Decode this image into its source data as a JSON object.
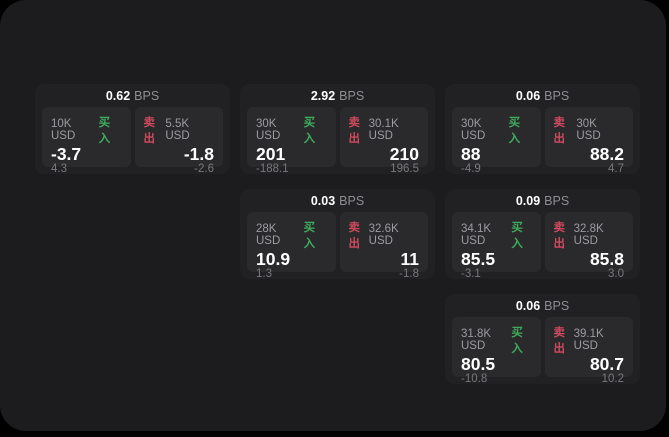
{
  "labels": {
    "bps_unit": "BPS",
    "buy": "买入",
    "sell": "卖出"
  },
  "colors": {
    "page_bg": "#000000",
    "window_bg": "#1c1c1e",
    "card_bg": "#212123",
    "panel_bg": "#2a2a2c",
    "buy": "#3eac5c",
    "sell": "#cf4a5e"
  },
  "cards": [
    {
      "bps": "0.62",
      "buy": {
        "amount": "10K USD",
        "value": "-3.7",
        "change": "4.3"
      },
      "sell": {
        "amount": "5.5K USD",
        "value": "-1.8",
        "change": "-2.6"
      }
    },
    {
      "bps": "2.92",
      "buy": {
        "amount": "30K USD",
        "value": "201",
        "change": "-188.1"
      },
      "sell": {
        "amount": "30.1K USD",
        "value": "210",
        "change": "196.5"
      }
    },
    {
      "bps": "0.06",
      "buy": {
        "amount": "30K USD",
        "value": "88",
        "change": "-4.9"
      },
      "sell": {
        "amount": "30K USD",
        "value": "88.2",
        "change": "4.7"
      }
    },
    {
      "bps": "0.03",
      "buy": {
        "amount": "28K USD",
        "value": "10.9",
        "change": "1.3"
      },
      "sell": {
        "amount": "32.6K USD",
        "value": "11",
        "change": "-1.8"
      }
    },
    {
      "bps": "0.09",
      "buy": {
        "amount": "34.1K USD",
        "value": "85.5",
        "change": "-3.1"
      },
      "sell": {
        "amount": "32.8K USD",
        "value": "85.8",
        "change": "3.0"
      }
    },
    {
      "bps": "0.06",
      "buy": {
        "amount": "31.8K USD",
        "value": "80.5",
        "change": "-10.8"
      },
      "sell": {
        "amount": "39.1K USD",
        "value": "80.7",
        "change": "10.2"
      }
    }
  ]
}
